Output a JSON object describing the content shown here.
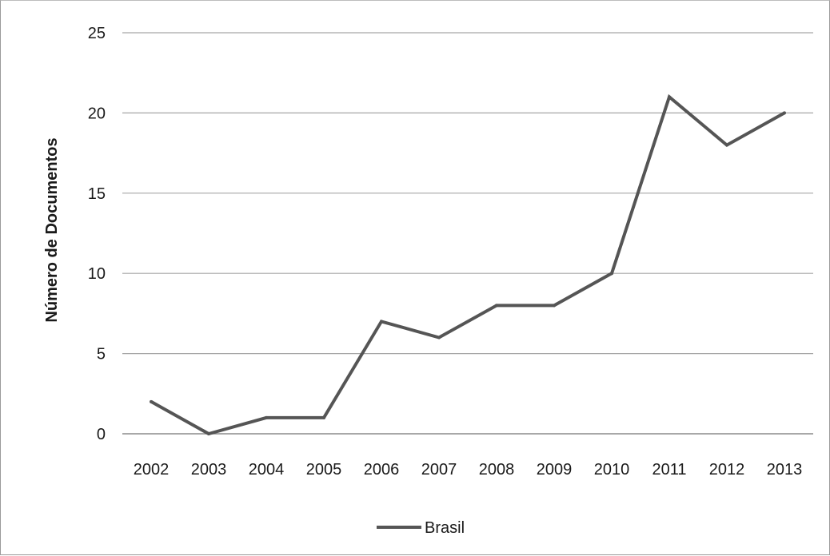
{
  "chart_data": {
    "type": "line",
    "title": "",
    "xlabel": "",
    "ylabel": "Número de Documentos",
    "ylim": [
      0,
      25
    ],
    "yticks": [
      0,
      5,
      10,
      15,
      20,
      25
    ],
    "grid": true,
    "legend_position": "bottom",
    "categories": [
      "2002",
      "2003",
      "2004",
      "2005",
      "2006",
      "2007",
      "2008",
      "2009",
      "2010",
      "2011",
      "2012",
      "2013"
    ],
    "series": [
      {
        "name": "Brasil",
        "color": "#555555",
        "values": [
          2,
          0,
          1,
          1,
          7,
          6,
          8,
          8,
          10,
          21,
          18,
          20
        ]
      }
    ]
  }
}
